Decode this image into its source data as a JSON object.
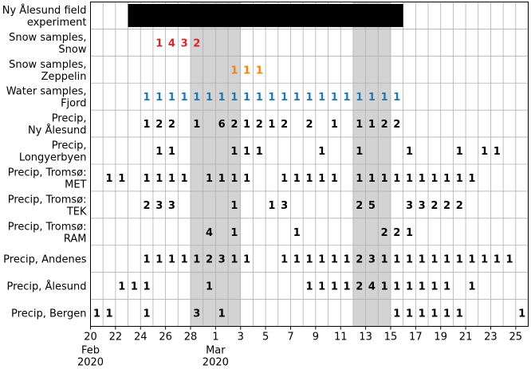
{
  "chart_data": {
    "type": "table",
    "x_axis": {
      "start": "2020-02-20",
      "end": "2020-03-26",
      "ticks": [
        {
          "date": "2020-02-20",
          "label": "20",
          "sub": [
            "Feb",
            "2020"
          ]
        },
        {
          "date": "2020-02-22",
          "label": "22"
        },
        {
          "date": "2020-02-24",
          "label": "24"
        },
        {
          "date": "2020-02-26",
          "label": "26"
        },
        {
          "date": "2020-02-28",
          "label": "28"
        },
        {
          "date": "2020-03-01",
          "label": "1",
          "sub": [
            "Mar",
            "2020"
          ]
        },
        {
          "date": "2020-03-03",
          "label": "3"
        },
        {
          "date": "2020-03-05",
          "label": "5"
        },
        {
          "date": "2020-03-07",
          "label": "7"
        },
        {
          "date": "2020-03-09",
          "label": "9"
        },
        {
          "date": "2020-03-11",
          "label": "11"
        },
        {
          "date": "2020-03-13",
          "label": "13"
        },
        {
          "date": "2020-03-15",
          "label": "15"
        },
        {
          "date": "2020-03-17",
          "label": "17"
        },
        {
          "date": "2020-03-19",
          "label": "19"
        },
        {
          "date": "2020-03-21",
          "label": "21"
        },
        {
          "date": "2020-03-23",
          "label": "23"
        },
        {
          "date": "2020-03-25",
          "label": "25"
        }
      ],
      "grid": true
    },
    "shaded_periods": [
      {
        "start": "2020-02-28",
        "end": "2020-03-03"
      },
      {
        "start": "2020-03-12",
        "end": "2020-03-15"
      }
    ],
    "field_experiment": {
      "start": "2020-02-23",
      "end": "2020-03-16",
      "color": "#000000"
    },
    "rows": [
      {
        "label": [
          "Ny Ålesund field",
          "experiment"
        ]
      },
      {
        "label": [
          "Snow samples,",
          "Snow"
        ],
        "color": "#d62728",
        "values": [
          [
            "2020-02-25",
            "1"
          ],
          [
            "2020-02-26",
            "4"
          ],
          [
            "2020-02-27",
            "3"
          ],
          [
            "2020-02-28",
            "2"
          ]
        ]
      },
      {
        "label": [
          "Snow samples,",
          "Zeppelin"
        ],
        "color": "#ff7f0e",
        "values": [
          [
            "2020-03-02",
            "1"
          ],
          [
            "2020-03-03",
            "1"
          ],
          [
            "2020-03-04",
            "1"
          ]
        ]
      },
      {
        "label": [
          "Water samples,",
          "Fjord"
        ],
        "color": "#1f77b4",
        "values": [
          [
            "2020-02-24",
            "1"
          ],
          [
            "2020-02-25",
            "1"
          ],
          [
            "2020-02-26",
            "1"
          ],
          [
            "2020-02-27",
            "1"
          ],
          [
            "2020-02-28",
            "1"
          ],
          [
            "2020-02-29",
            "1"
          ],
          [
            "2020-03-01",
            "1"
          ],
          [
            "2020-03-02",
            "1"
          ],
          [
            "2020-03-03",
            "1"
          ],
          [
            "2020-03-04",
            "1"
          ],
          [
            "2020-03-05",
            "1"
          ],
          [
            "2020-03-06",
            "1"
          ],
          [
            "2020-03-07",
            "1"
          ],
          [
            "2020-03-08",
            "1"
          ],
          [
            "2020-03-09",
            "1"
          ],
          [
            "2020-03-10",
            "1"
          ],
          [
            "2020-03-11",
            "1"
          ],
          [
            "2020-03-12",
            "1"
          ],
          [
            "2020-03-13",
            "1"
          ],
          [
            "2020-03-14",
            "1"
          ],
          [
            "2020-03-15",
            "1"
          ]
        ]
      },
      {
        "label": [
          "Precip,",
          "Ny Ålesund"
        ],
        "color": "#000000",
        "values": [
          [
            "2020-02-24",
            "1"
          ],
          [
            "2020-02-25",
            "2"
          ],
          [
            "2020-02-26",
            "2"
          ],
          [
            "2020-02-28",
            "1"
          ],
          [
            "2020-03-01",
            "6"
          ],
          [
            "2020-03-02",
            "2"
          ],
          [
            "2020-03-03",
            "1"
          ],
          [
            "2020-03-04",
            "2"
          ],
          [
            "2020-03-05",
            "1"
          ],
          [
            "2020-03-06",
            "2"
          ],
          [
            "2020-03-08",
            "2"
          ],
          [
            "2020-03-10",
            "1"
          ],
          [
            "2020-03-12",
            "1"
          ],
          [
            "2020-03-13",
            "1"
          ],
          [
            "2020-03-14",
            "2"
          ],
          [
            "2020-03-15",
            "2"
          ]
        ]
      },
      {
        "label": [
          "Precip,",
          "Longyerbyen"
        ],
        "color": "#000000",
        "values": [
          [
            "2020-02-25",
            "1"
          ],
          [
            "2020-02-26",
            "1"
          ],
          [
            "2020-03-02",
            "1"
          ],
          [
            "2020-03-03",
            "1"
          ],
          [
            "2020-03-04",
            "1"
          ],
          [
            "2020-03-09",
            "1"
          ],
          [
            "2020-03-12",
            "1"
          ],
          [
            "2020-03-16",
            "1"
          ],
          [
            "2020-03-20",
            "1"
          ],
          [
            "2020-03-22",
            "1"
          ],
          [
            "2020-03-23",
            "1"
          ]
        ]
      },
      {
        "label": [
          "Precip, Tromsø:",
          "MET"
        ],
        "color": "#000000",
        "values": [
          [
            "2020-02-21",
            "1"
          ],
          [
            "2020-02-22",
            "1"
          ],
          [
            "2020-02-24",
            "1"
          ],
          [
            "2020-02-25",
            "1"
          ],
          [
            "2020-02-26",
            "1"
          ],
          [
            "2020-02-27",
            "1"
          ],
          [
            "2020-02-29",
            "1"
          ],
          [
            "2020-03-01",
            "1"
          ],
          [
            "2020-03-02",
            "1"
          ],
          [
            "2020-03-03",
            "1"
          ],
          [
            "2020-03-06",
            "1"
          ],
          [
            "2020-03-07",
            "1"
          ],
          [
            "2020-03-08",
            "1"
          ],
          [
            "2020-03-09",
            "1"
          ],
          [
            "2020-03-10",
            "1"
          ],
          [
            "2020-03-12",
            "1"
          ],
          [
            "2020-03-13",
            "1"
          ],
          [
            "2020-03-14",
            "1"
          ],
          [
            "2020-03-15",
            "1"
          ],
          [
            "2020-03-16",
            "1"
          ],
          [
            "2020-03-17",
            "1"
          ],
          [
            "2020-03-18",
            "1"
          ],
          [
            "2020-03-19",
            "1"
          ],
          [
            "2020-03-20",
            "1"
          ],
          [
            "2020-03-21",
            "1"
          ]
        ]
      },
      {
        "label": [
          "Precip, Tromsø:",
          "TEK"
        ],
        "color": "#000000",
        "values": [
          [
            "2020-02-24",
            "2"
          ],
          [
            "2020-02-25",
            "3"
          ],
          [
            "2020-02-26",
            "3"
          ],
          [
            "2020-03-02",
            "1"
          ],
          [
            "2020-03-05",
            "1"
          ],
          [
            "2020-03-06",
            "3"
          ],
          [
            "2020-03-12",
            "2"
          ],
          [
            "2020-03-13",
            "5"
          ],
          [
            "2020-03-16",
            "3"
          ],
          [
            "2020-03-17",
            "3"
          ],
          [
            "2020-03-18",
            "2"
          ],
          [
            "2020-03-19",
            "2"
          ],
          [
            "2020-03-20",
            "2"
          ]
        ]
      },
      {
        "label": [
          "Precip, Tromsø:",
          "RAM"
        ],
        "color": "#000000",
        "values": [
          [
            "2020-02-29",
            "4"
          ],
          [
            "2020-03-02",
            "1"
          ],
          [
            "2020-03-07",
            "1"
          ],
          [
            "2020-03-14",
            "2"
          ],
          [
            "2020-03-15",
            "2"
          ],
          [
            "2020-03-16",
            "1"
          ]
        ]
      },
      {
        "label": [
          "Precip, Andenes"
        ],
        "color": "#000000",
        "values": [
          [
            "2020-02-24",
            "1"
          ],
          [
            "2020-02-25",
            "1"
          ],
          [
            "2020-02-26",
            "1"
          ],
          [
            "2020-02-27",
            "1"
          ],
          [
            "2020-02-28",
            "1"
          ],
          [
            "2020-02-29",
            "2"
          ],
          [
            "2020-03-01",
            "3"
          ],
          [
            "2020-03-02",
            "1"
          ],
          [
            "2020-03-03",
            "1"
          ],
          [
            "2020-03-06",
            "1"
          ],
          [
            "2020-03-07",
            "1"
          ],
          [
            "2020-03-08",
            "1"
          ],
          [
            "2020-03-09",
            "1"
          ],
          [
            "2020-03-10",
            "1"
          ],
          [
            "2020-03-11",
            "1"
          ],
          [
            "2020-03-12",
            "2"
          ],
          [
            "2020-03-13",
            "3"
          ],
          [
            "2020-03-14",
            "1"
          ],
          [
            "2020-03-15",
            "1"
          ],
          [
            "2020-03-16",
            "1"
          ],
          [
            "2020-03-17",
            "1"
          ],
          [
            "2020-03-18",
            "1"
          ],
          [
            "2020-03-19",
            "1"
          ],
          [
            "2020-03-20",
            "1"
          ],
          [
            "2020-03-21",
            "1"
          ],
          [
            "2020-03-22",
            "1"
          ],
          [
            "2020-03-23",
            "1"
          ],
          [
            "2020-03-24",
            "1"
          ]
        ]
      },
      {
        "label": [
          "Precip, Ålesund"
        ],
        "color": "#000000",
        "values": [
          [
            "2020-02-22",
            "1"
          ],
          [
            "2020-02-23",
            "1"
          ],
          [
            "2020-02-24",
            "1"
          ],
          [
            "2020-02-29",
            "1"
          ],
          [
            "2020-03-08",
            "1"
          ],
          [
            "2020-03-09",
            "1"
          ],
          [
            "2020-03-10",
            "1"
          ],
          [
            "2020-03-11",
            "1"
          ],
          [
            "2020-03-12",
            "2"
          ],
          [
            "2020-03-13",
            "4"
          ],
          [
            "2020-03-14",
            "1"
          ],
          [
            "2020-03-15",
            "1"
          ],
          [
            "2020-03-16",
            "1"
          ],
          [
            "2020-03-17",
            "1"
          ],
          [
            "2020-03-18",
            "1"
          ],
          [
            "2020-03-19",
            "1"
          ],
          [
            "2020-03-21",
            "1"
          ]
        ]
      },
      {
        "label": [
          "Precip, Bergen"
        ],
        "color": "#000000",
        "values": [
          [
            "2020-02-20",
            "1"
          ],
          [
            "2020-02-21",
            "1"
          ],
          [
            "2020-02-24",
            "1"
          ],
          [
            "2020-02-28",
            "3"
          ],
          [
            "2020-03-01",
            "1"
          ],
          [
            "2020-03-15",
            "1"
          ],
          [
            "2020-03-16",
            "1"
          ],
          [
            "2020-03-17",
            "1"
          ],
          [
            "2020-03-18",
            "1"
          ],
          [
            "2020-03-19",
            "1"
          ],
          [
            "2020-03-20",
            "1"
          ],
          [
            "2020-03-25",
            "1"
          ]
        ]
      }
    ]
  }
}
